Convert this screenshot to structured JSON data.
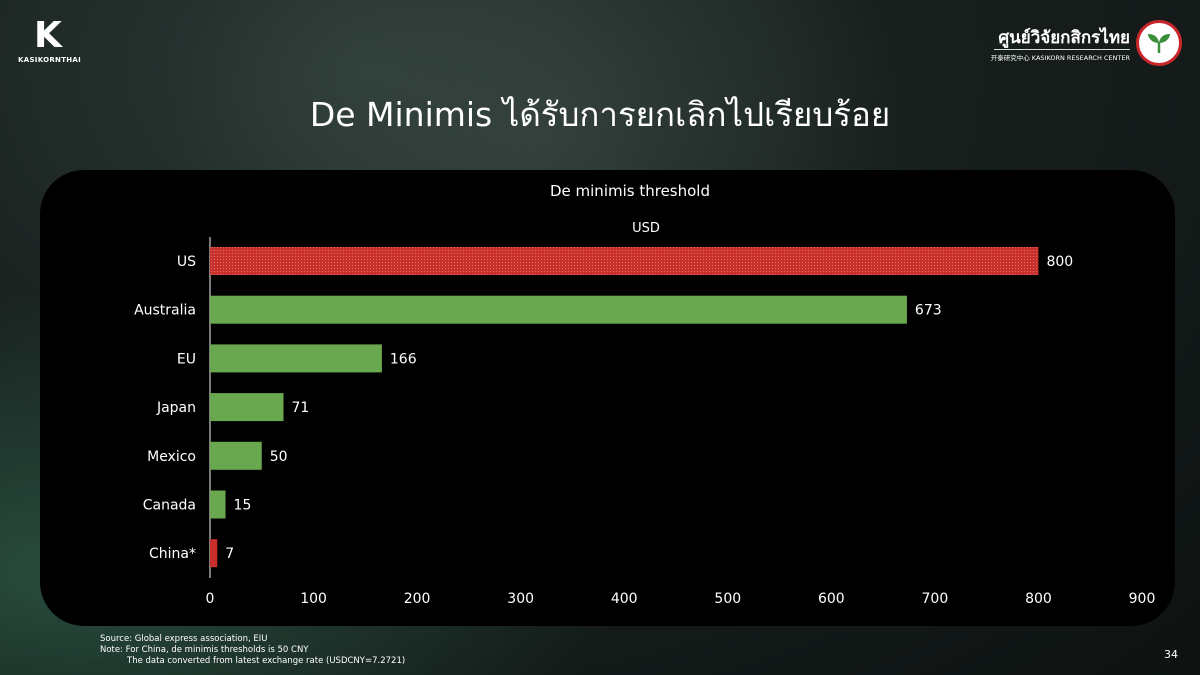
{
  "brand": {
    "left_logo_text": "KASIKORNTHAI",
    "right_logo_thai": "ศูนย์วิจัยกสิกรไทย",
    "right_logo_en": "开泰研究中心 KASIKORN RESEARCH CENTER"
  },
  "page": {
    "title": "De Minimis ได้รับการยกเลิกไปเรียบร้อย",
    "number": "34"
  },
  "footnote": {
    "source": "Source: Global express association, EIU",
    "note": "Note: For China, de minimis thresholds is 50 CNY",
    "note2": "The data converted from latest exchange rate (USDCNY=7.2721)"
  },
  "colors": {
    "green": "#6aa84f",
    "red": "#c9302c"
  },
  "chart_data": {
    "type": "bar",
    "orientation": "horizontal",
    "title": "De minimis threshold",
    "subtitle": "USD",
    "categories": [
      "US",
      "Australia",
      "EU",
      "Japan",
      "Mexico",
      "Canada",
      "China*"
    ],
    "values": [
      800,
      673,
      166,
      71,
      50,
      15,
      7
    ],
    "bar_colors": [
      "red",
      "green",
      "green",
      "green",
      "green",
      "green",
      "red"
    ],
    "xlim": [
      0,
      900
    ],
    "xticks": [
      0,
      100,
      200,
      300,
      400,
      500,
      600,
      700,
      800,
      900
    ],
    "grid": false,
    "legend": "none"
  }
}
